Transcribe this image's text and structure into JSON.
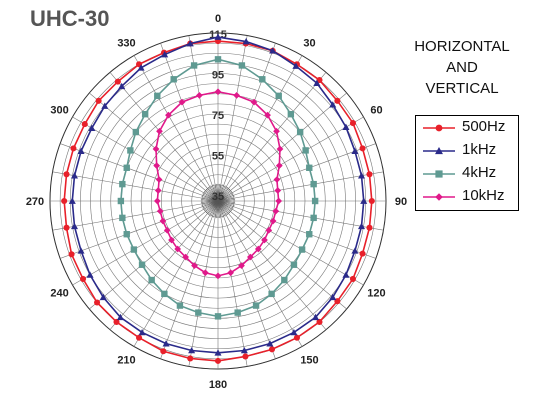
{
  "title": "UHC-30",
  "subtitle_lines": [
    "HORIZONTAL",
    "AND",
    "VERTICAL"
  ],
  "chart_data": {
    "type": "polar-line",
    "radial_range": [
      35,
      115
    ],
    "radial_ticks": [
      35,
      55,
      75,
      95,
      115
    ],
    "angle_ticks": [
      0,
      30,
      60,
      90,
      120,
      150,
      180,
      210,
      240,
      270,
      300,
      330
    ],
    "angle_step": 10,
    "legend": "right",
    "series": [
      {
        "name": "500Hz",
        "color": "#e8202a",
        "marker": "circle",
        "values": [
          111,
          111,
          111,
          110,
          110,
          109,
          109,
          108,
          108,
          108,
          108,
          108,
          109,
          109,
          110,
          110,
          110,
          110,
          111,
          111,
          111,
          110,
          110,
          110,
          109,
          109,
          108,
          108,
          108,
          108,
          108,
          109,
          109,
          110,
          110,
          111
        ]
      },
      {
        "name": "1kHz",
        "color": "#2a2a8a",
        "marker": "triangle",
        "values": [
          113,
          112,
          111,
          109,
          108,
          106,
          105,
          104,
          104,
          104,
          104,
          104,
          105,
          106,
          107,
          107,
          107,
          107,
          107,
          107,
          107,
          107,
          107,
          106,
          105,
          104,
          104,
          104,
          104,
          104,
          104,
          105,
          106,
          108,
          109,
          111
        ]
      },
      {
        "name": "4kHz",
        "color": "#5f9a92",
        "marker": "square",
        "values": [
          102,
          100,
          96,
          92,
          88,
          85,
          82,
          80,
          80,
          80,
          80,
          80,
          80,
          81,
          83,
          85,
          87,
          88,
          89,
          88,
          87,
          85,
          83,
          81,
          80,
          80,
          80,
          80,
          80,
          80,
          82,
          85,
          88,
          92,
          96,
          100
        ]
      },
      {
        "name": "10kHz",
        "color": "#e0198a",
        "marker": "diamond",
        "values": [
          86,
          85,
          84,
          81,
          77,
          72,
          67,
          63,
          62,
          62,
          61,
          61,
          61,
          62,
          63,
          64,
          66,
          68,
          69,
          68,
          66,
          64,
          63,
          62,
          61,
          61,
          61,
          62,
          62,
          63,
          67,
          72,
          77,
          81,
          84,
          85
        ]
      }
    ]
  }
}
